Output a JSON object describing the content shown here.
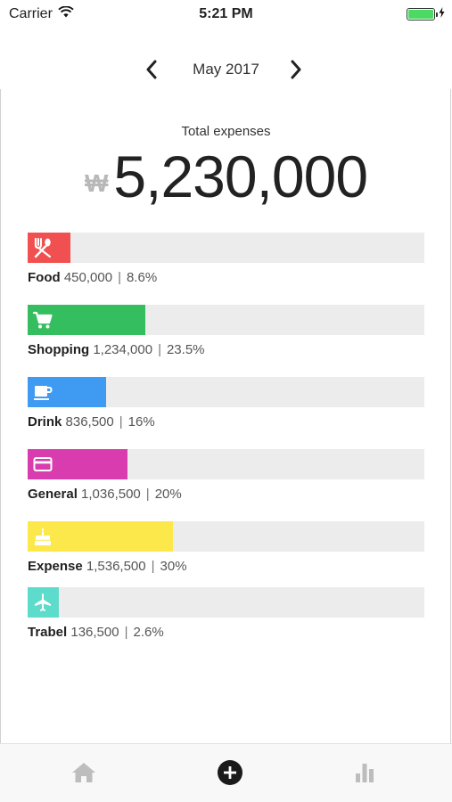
{
  "status_bar": {
    "carrier": "Carrier",
    "time": "5:21 PM"
  },
  "header": {
    "month": "May 2017"
  },
  "summary": {
    "label": "Total expenses",
    "currency_symbol": "₩",
    "amount": "5,230,000"
  },
  "categories": [
    {
      "name": "Food",
      "amount": "450,000",
      "percent": "8.6%",
      "fill": 0.108,
      "color": "#f0504f",
      "icon": "fork-knife-icon"
    },
    {
      "name": "Shopping",
      "amount": "1,234,000",
      "percent": "23.5%",
      "fill": 0.297,
      "color": "#35be5f",
      "icon": "shopping-cart-icon"
    },
    {
      "name": "Drink",
      "amount": "836,500",
      "percent": "16%",
      "fill": 0.198,
      "color": "#3f9af2",
      "icon": "coffee-cup-icon"
    },
    {
      "name": "General",
      "amount": "1,036,500",
      "percent": "20%",
      "fill": 0.252,
      "color": "#d83cae",
      "icon": "credit-card-icon"
    },
    {
      "name": "Expense",
      "amount": "1,536,500",
      "percent": "30%",
      "fill": 0.366,
      "color": "#fde84c",
      "icon": "cake-icon"
    },
    {
      "name": "Trabel",
      "amount": "136,500",
      "percent": "2.6%",
      "fill": 0.079,
      "color": "#5edccb",
      "icon": "airplane-icon"
    }
  ],
  "tab_bar": {
    "items": [
      "home-icon",
      "add-circle-icon",
      "bar-chart-icon"
    ]
  }
}
